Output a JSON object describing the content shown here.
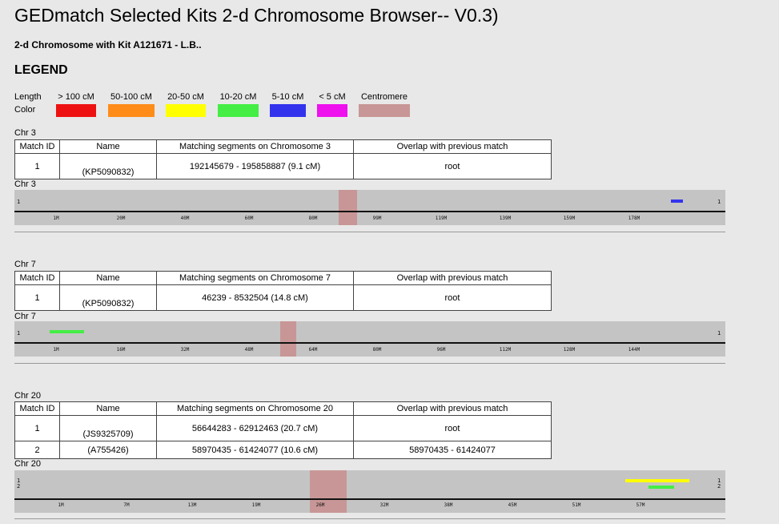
{
  "title": "GEDmatch Selected Kits 2-d Chromosome Browser-- V0.3)",
  "subtitle": "2-d Chromosome with Kit A121671 - L.B..",
  "legend": {
    "heading": "LEGEND",
    "length_label": "Length",
    "color_label": "Color",
    "items": [
      {
        "label": "> 100 cM",
        "color": "#ee1111"
      },
      {
        "label": "50-100 cM",
        "color": "#ff8c19"
      },
      {
        "label": "20-50 cM",
        "color": "#ffff00"
      },
      {
        "label": "10-20 cM",
        "color": "#44ee44"
      },
      {
        "label": "5-10 cM",
        "color": "#3333ee"
      },
      {
        "label": "< 5 cM",
        "color": "#ee11ee"
      },
      {
        "label": "Centromere",
        "color": "#c89696"
      }
    ]
  },
  "table_headers": {
    "id": "Match ID",
    "name": "Name",
    "overlap": "Overlap with previous match"
  },
  "chromosomes": [
    {
      "label": "Chr 3",
      "segments_header": "Matching segments on Chromosome 3",
      "rows": [
        {
          "id": "1",
          "name": "(KP5090832)",
          "segment": "192145679 - 195858887 (9.1 cM)",
          "overlap": "root"
        }
      ],
      "track_label": "Chr 3",
      "ticks": [
        "1M",
        "20M",
        "40M",
        "60M",
        "80M",
        "99M",
        "119M",
        "139M",
        "159M",
        "178M"
      ],
      "left_index": [
        "1"
      ],
      "right_index": [
        "1"
      ]
    },
    {
      "label": "Chr 7",
      "segments_header": "Matching segments on Chromosome 7",
      "rows": [
        {
          "id": "1",
          "name": "(KP5090832)",
          "segment": "46239 - 8532504 (14.8 cM)",
          "overlap": "root"
        }
      ],
      "track_label": "Chr 7",
      "ticks": [
        "1M",
        "16M",
        "32M",
        "48M",
        "64M",
        "80M",
        "96M",
        "112M",
        "128M",
        "144M"
      ],
      "left_index": [
        "1"
      ],
      "right_index": [
        "1"
      ]
    },
    {
      "label": "Chr 20",
      "segments_header": "Matching segments on Chromosome 20",
      "rows": [
        {
          "id": "1",
          "name": "(JS9325709)",
          "segment": "56644283 - 62912463 (20.7 cM)",
          "overlap": "root"
        },
        {
          "id": "2",
          "name": "(A755426)",
          "segment": "58970435 - 61424077 (10.6 cM)",
          "overlap": "58970435 - 61424077"
        }
      ],
      "track_label": "Chr 20",
      "ticks": [
        "1M",
        "7M",
        "13M",
        "19M",
        "26M",
        "32M",
        "38M",
        "45M",
        "51M",
        "57M"
      ],
      "left_index": [
        "1",
        "2"
      ],
      "right_index": [
        "1",
        "2"
      ]
    }
  ]
}
